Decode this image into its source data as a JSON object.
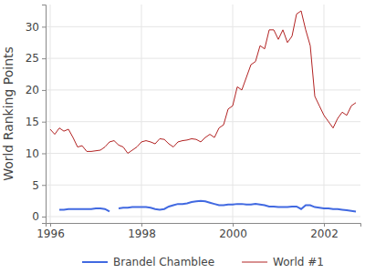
{
  "chart_data": {
    "type": "line",
    "y_label": "World Ranking Points",
    "x": [
      1996.0,
      1996.1,
      1996.2,
      1996.3,
      1996.4,
      1996.5,
      1996.6,
      1996.7,
      1996.8,
      1996.9,
      1997.0,
      1997.1,
      1997.2,
      1997.3,
      1997.4,
      1997.5,
      1997.6,
      1997.7,
      1997.8,
      1997.9,
      1998.0,
      1998.1,
      1998.2,
      1998.3,
      1998.4,
      1998.5,
      1998.6,
      1998.7,
      1998.8,
      1998.9,
      1999.0,
      1999.1,
      1999.2,
      1999.3,
      1999.4,
      1999.5,
      1999.6,
      1999.7,
      1999.8,
      1999.9,
      2000.0,
      2000.1,
      2000.2,
      2000.3,
      2000.4,
      2000.5,
      2000.6,
      2000.7,
      2000.8,
      2000.9,
      2001.0,
      2001.1,
      2001.2,
      2001.3,
      2001.4,
      2001.5,
      2001.6,
      2001.7,
      2001.8,
      2001.9,
      2002.0,
      2002.1,
      2002.2,
      2002.3,
      2002.4,
      2002.5,
      2002.6,
      2002.7
    ],
    "series": [
      {
        "name": "Brandel Chamblee",
        "color": "#4169e1",
        "values": [
          null,
          null,
          1.1,
          1.1,
          1.2,
          1.2,
          1.2,
          1.2,
          1.2,
          1.2,
          1.3,
          1.3,
          1.2,
          0.8,
          null,
          1.3,
          1.4,
          1.4,
          1.5,
          1.5,
          1.5,
          1.5,
          1.4,
          1.2,
          1.1,
          1.2,
          1.6,
          1.8,
          2.0,
          2.0,
          2.1,
          2.3,
          2.4,
          2.5,
          2.4,
          2.2,
          2.0,
          1.8,
          1.8,
          1.9,
          1.9,
          2.0,
          2.0,
          1.9,
          1.9,
          2.0,
          1.9,
          1.8,
          1.6,
          1.6,
          1.5,
          1.5,
          1.5,
          1.6,
          1.6,
          1.2,
          1.8,
          1.8,
          1.5,
          1.4,
          1.3,
          1.3,
          1.2,
          1.2,
          1.1,
          1.0,
          0.9,
          0.8
        ]
      },
      {
        "name": "World #1",
        "color": "#b22222",
        "values": [
          13.8,
          13.0,
          14.0,
          13.5,
          13.8,
          12.5,
          11.0,
          11.2,
          10.3,
          10.3,
          10.4,
          10.5,
          11.0,
          11.8,
          12.0,
          11.3,
          11.0,
          10.0,
          10.5,
          11.0,
          11.8,
          12.0,
          11.8,
          11.5,
          12.3,
          12.2,
          11.5,
          11.0,
          11.8,
          12.0,
          12.1,
          12.3,
          12.2,
          11.8,
          12.5,
          13.0,
          12.5,
          14.0,
          14.5,
          17.0,
          17.5,
          20.5,
          20.0,
          22.0,
          24.0,
          24.5,
          27.0,
          26.5,
          29.5,
          29.5,
          28.0,
          29.5,
          27.5,
          28.5,
          32.0,
          32.5,
          29.5,
          27.0,
          19.0,
          17.5,
          16.0,
          15.0,
          14.0,
          15.5,
          16.5,
          16.0,
          17.5,
          18.0
        ]
      }
    ],
    "xlim": [
      1995.9,
      2002.8
    ],
    "xticks": [
      1996,
      1998,
      2000,
      2002
    ],
    "ylim": [
      -1,
      33.5
    ],
    "yticks": [
      0,
      5,
      10,
      15,
      20,
      25,
      30
    ],
    "grid": true,
    "legend": "bottom"
  }
}
